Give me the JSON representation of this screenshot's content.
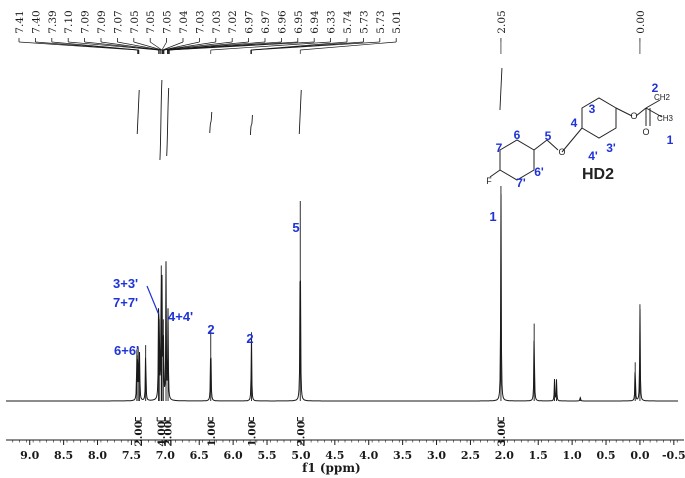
{
  "chart_data": {
    "type": "line",
    "title": "",
    "xlabel": "f1 (ppm)",
    "ylabel": "",
    "x_reversed": true,
    "xlim": [
      9.35,
      -0.65
    ],
    "x_ticks": [
      {
        "value": 9.0,
        "label": "9.0"
      },
      {
        "value": 8.5,
        "label": "8.5"
      },
      {
        "value": 8.0,
        "label": "8.0"
      },
      {
        "value": 7.5,
        "label": "7.5"
      },
      {
        "value": 7.0,
        "label": "7.0"
      },
      {
        "value": 6.5,
        "label": "6.5"
      },
      {
        "value": 6.0,
        "label": "6.0"
      },
      {
        "value": 5.5,
        "label": "5.5"
      },
      {
        "value": 5.0,
        "label": "5.0"
      },
      {
        "value": 4.5,
        "label": "4.5"
      },
      {
        "value": 4.0,
        "label": "4.0"
      },
      {
        "value": 3.5,
        "label": "3.5"
      },
      {
        "value": 3.0,
        "label": "3.0"
      },
      {
        "value": 2.5,
        "label": "2.5"
      },
      {
        "value": 2.0,
        "label": "2.0"
      },
      {
        "value": 1.5,
        "label": "1.5"
      },
      {
        "value": 1.0,
        "label": "1.0"
      },
      {
        "value": 0.5,
        "label": "0.5"
      },
      {
        "value": 0.0,
        "label": "0.0"
      },
      {
        "value": -0.5,
        "label": "-0.5"
      }
    ],
    "peak_list_group1": [
      "7.41",
      "7.40",
      "7.39",
      "7.10",
      "7.09",
      "7.09",
      "7.07",
      "7.05",
      "7.05",
      "7.05",
      "7.04",
      "7.03",
      "7.03",
      "7.02",
      "6.97",
      "6.97",
      "6.96",
      "6.95",
      "6.94",
      "6.33",
      "5.74",
      "5.73",
      "5.73",
      "5.01"
    ],
    "peak_list_group2": [
      "2.05"
    ],
    "peak_list_group3": [
      "0.00"
    ],
    "peaks": [
      {
        "ppm": 7.42,
        "height": 0.24
      },
      {
        "ppm": 7.4,
        "height": 0.25
      },
      {
        "ppm": 7.38,
        "height": 0.22
      },
      {
        "ppm": 7.29,
        "height": 0.26
      },
      {
        "ppm": 7.1,
        "height": 0.37
      },
      {
        "ppm": 7.09,
        "height": 0.38
      },
      {
        "ppm": 7.06,
        "height": 0.63
      },
      {
        "ppm": 7.05,
        "height": 0.48
      },
      {
        "ppm": 7.03,
        "height": 0.38
      },
      {
        "ppm": 6.99,
        "height": 0.63
      },
      {
        "ppm": 6.96,
        "height": 0.42
      },
      {
        "ppm": 6.33,
        "height": 0.33
      },
      {
        "ppm": 5.73,
        "height": 0.32
      },
      {
        "ppm": 5.01,
        "height": 0.93
      },
      {
        "ppm": 2.05,
        "height": 1.0
      },
      {
        "ppm": 1.56,
        "height": 0.36
      },
      {
        "ppm": 1.26,
        "height": 0.1
      },
      {
        "ppm": 1.23,
        "height": 0.1
      },
      {
        "ppm": 0.88,
        "height": 0.02
      },
      {
        "ppm": 0.07,
        "height": 0.18
      },
      {
        "ppm": 0.0,
        "height": 0.45
      }
    ],
    "integrals": [
      {
        "value": "2.00",
        "from": 7.44,
        "to": 7.36
      },
      {
        "value": "4.00",
        "from": 7.12,
        "to": 7.01
      },
      {
        "value": "2.00",
        "from": 7.0,
        "to": 6.93
      },
      {
        "value": "1.00",
        "from": 6.36,
        "to": 6.3
      },
      {
        "value": "1.00",
        "from": 5.76,
        "to": 5.7
      },
      {
        "value": "2.00",
        "from": 5.05,
        "to": 4.97
      },
      {
        "value": "3.00",
        "from": 2.09,
        "to": 2.01
      }
    ],
    "peak_assignments": [
      {
        "text": "6+6'",
        "ppm": 7.4
      },
      {
        "text": "3+3'",
        "ppm": 7.1
      },
      {
        "text": "7+7'",
        "ppm": 7.08
      },
      {
        "text": "4+4'",
        "ppm": 6.97
      },
      {
        "text": "2",
        "ppm": 6.33
      },
      {
        "text": "2",
        "ppm": 5.73
      },
      {
        "text": "5",
        "ppm": 5.01
      },
      {
        "text": "1",
        "ppm": 2.05
      }
    ],
    "compound_label": "HD2",
    "structure_atom_labels": [
      "1",
      "2",
      "3",
      "3'",
      "4",
      "4'",
      "5",
      "6",
      "6'",
      "7",
      "7'"
    ],
    "structure_element_labels": [
      "F",
      "O",
      "O",
      "O",
      "CH2",
      "CH3"
    ],
    "colors": {
      "spectrum": "#1a1a1a",
      "annotation": "#1f33d6",
      "structure": "#222222"
    }
  }
}
